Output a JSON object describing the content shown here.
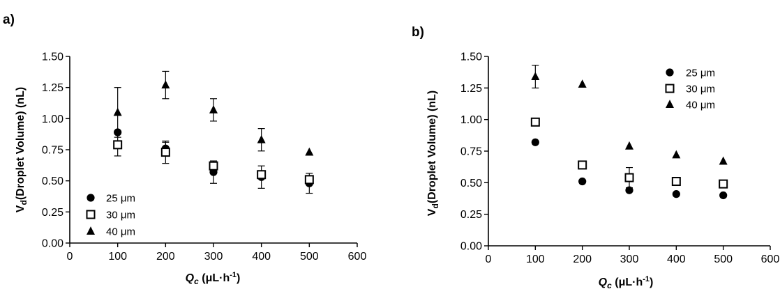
{
  "chart_data": [
    {
      "panel_label": "a)",
      "type": "scatter",
      "xlabel_main": "Q",
      "xlabel_sub": "c",
      "xlabel_rest": " (μL·h",
      "xlabel_sup": "-1",
      "xlabel_close": ")",
      "ylabel_main": "V",
      "ylabel_sub": "d",
      "ylabel_rest": "(Droplet Volume) (nL)",
      "xlim": [
        0,
        600
      ],
      "ylim": [
        0,
        1.5
      ],
      "xticks": [
        "0",
        "100",
        "200",
        "300",
        "400",
        "500",
        "600"
      ],
      "yticks": [
        "0.00",
        "0.25",
        "0.50",
        "0.75",
        "1.00",
        "1.25",
        "1.50"
      ],
      "legend_position": "bottom-left",
      "series": [
        {
          "name": "25 μm",
          "marker": "circle",
          "x": [
            100,
            200,
            300,
            400,
            500
          ],
          "y": [
            0.89,
            0.76,
            0.57,
            0.53,
            0.48
          ],
          "err": [
            0.0,
            0.05,
            0.09,
            0.09,
            0.08
          ]
        },
        {
          "name": "30 μm",
          "marker": "square",
          "x": [
            100,
            200,
            300,
            400,
            500
          ],
          "y": [
            0.79,
            0.73,
            0.62,
            0.55,
            0.51
          ],
          "err": [
            0.09,
            0.09,
            0.0,
            0.0,
            0.0
          ]
        },
        {
          "name": "40 μm",
          "marker": "triangle",
          "x": [
            100,
            200,
            300,
            400,
            500
          ],
          "y": [
            1.05,
            1.27,
            1.07,
            0.83,
            0.73
          ],
          "err": [
            0.2,
            0.11,
            0.09,
            0.09,
            0.0
          ]
        }
      ]
    },
    {
      "panel_label": "b)",
      "type": "scatter",
      "xlabel_main": "Q",
      "xlabel_sub": "c",
      "xlabel_rest": " (μL·h",
      "xlabel_sup": "-1",
      "xlabel_close": ")",
      "ylabel_main": "V",
      "ylabel_sub": "d",
      "ylabel_rest": "(Droplet Volume) (nL)",
      "xlim": [
        0,
        600
      ],
      "ylim": [
        0,
        1.5
      ],
      "xticks": [
        "0",
        "100",
        "200",
        "300",
        "400",
        "500",
        "600"
      ],
      "yticks": [
        "0.00",
        "0.25",
        "0.50",
        "0.75",
        "1.00",
        "1.25",
        "1.50"
      ],
      "legend_position": "top-right",
      "series": [
        {
          "name": "25 μm",
          "marker": "circle",
          "x": [
            100,
            200,
            300,
            400,
            500
          ],
          "y": [
            0.82,
            0.51,
            0.44,
            0.41,
            0.4
          ],
          "err": [
            0,
            0,
            0,
            0,
            0
          ]
        },
        {
          "name": "30 μm",
          "marker": "square",
          "x": [
            100,
            200,
            300,
            400,
            500
          ],
          "y": [
            0.98,
            0.64,
            0.54,
            0.51,
            0.49
          ],
          "err": [
            0,
            0,
            0.08,
            0,
            0
          ]
        },
        {
          "name": "40 μm",
          "marker": "triangle",
          "x": [
            100,
            200,
            300,
            400,
            500
          ],
          "y": [
            1.34,
            1.28,
            0.79,
            0.72,
            0.67
          ],
          "err": [
            0.09,
            0,
            0,
            0,
            0
          ]
        }
      ]
    }
  ]
}
